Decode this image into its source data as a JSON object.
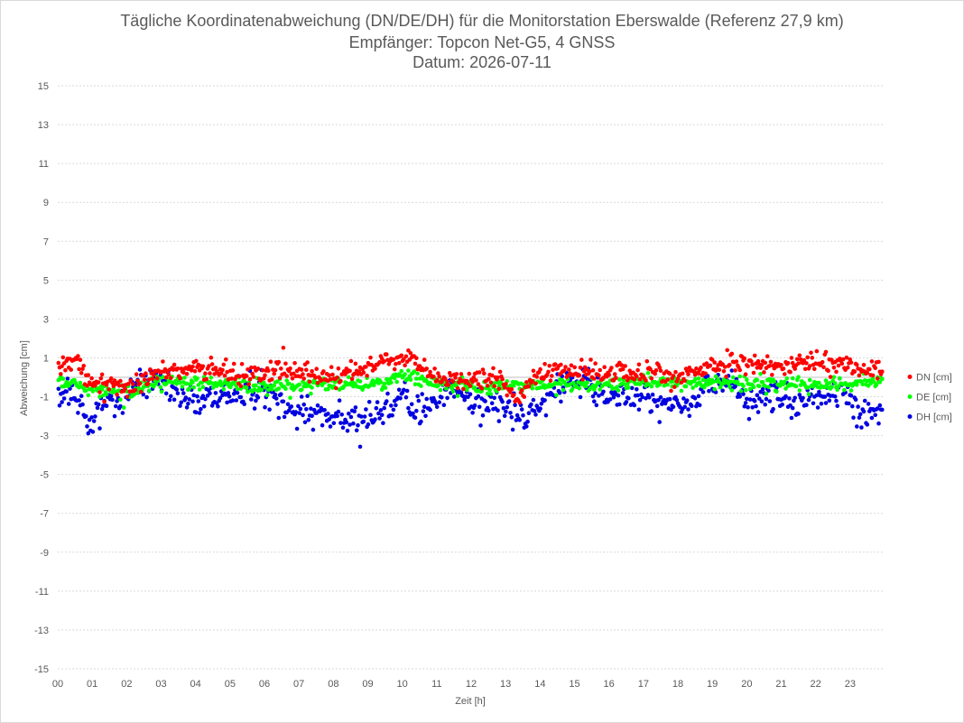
{
  "chart_data": {
    "type": "scatter",
    "title": [
      "Tägliche Koordinatenabweichung (DN/DE/DH) für die Monitorstation Eberswalde (Referenz 27,9 km)",
      "Empfänger: Topcon Net-G5, 4 GNSS",
      "Datum: 2026-07-11"
    ],
    "xlabel": "Zeit [h]",
    "ylabel": "Abweichung [cm]",
    "xlim": [
      0,
      24
    ],
    "ylim": [
      -15,
      15
    ],
    "x_ticks": [
      "00",
      "01",
      "02",
      "03",
      "04",
      "05",
      "06",
      "07",
      "08",
      "09",
      "10",
      "11",
      "12",
      "13",
      "14",
      "15",
      "16",
      "17",
      "18",
      "19",
      "20",
      "21",
      "22",
      "23"
    ],
    "y_ticks": [
      "15",
      "13",
      "11",
      "9",
      "7",
      "5",
      "3",
      "1",
      "-1",
      "-3",
      "-5",
      "-7",
      "-9",
      "-11",
      "-13",
      "-15"
    ],
    "grid": true,
    "legend": "right",
    "sample_interval_h": 0.0333,
    "series": [
      {
        "name": "DN [cm]",
        "color": "#ff0000",
        "profile": [
          [
            0.0,
            0.4
          ],
          [
            0.5,
            1.1
          ],
          [
            0.8,
            0.0
          ],
          [
            1.2,
            -0.2
          ],
          [
            1.5,
            -0.5
          ],
          [
            2.0,
            -0.6
          ],
          [
            2.5,
            -0.1
          ],
          [
            3.0,
            0.3
          ],
          [
            4.0,
            0.4
          ],
          [
            5.0,
            0.3
          ],
          [
            6.0,
            0.0
          ],
          [
            6.5,
            0.6
          ],
          [
            7.0,
            0.2
          ],
          [
            8.0,
            0.0
          ],
          [
            9.0,
            0.4
          ],
          [
            9.5,
            1.0
          ],
          [
            10.0,
            0.9
          ],
          [
            10.5,
            0.5
          ],
          [
            11.0,
            0.0
          ],
          [
            12.0,
            -0.2
          ],
          [
            12.5,
            0.0
          ],
          [
            13.0,
            -0.4
          ],
          [
            13.4,
            -1.3
          ],
          [
            13.8,
            0.1
          ],
          [
            14.5,
            0.3
          ],
          [
            15.0,
            0.4
          ],
          [
            16.0,
            0.3
          ],
          [
            17.0,
            0.2
          ],
          [
            18.0,
            0.0
          ],
          [
            19.0,
            0.6
          ],
          [
            20.0,
            0.8
          ],
          [
            21.0,
            0.5
          ],
          [
            22.0,
            0.8
          ],
          [
            23.0,
            0.6
          ],
          [
            23.9,
            0.2
          ]
        ],
        "spread": 0.35
      },
      {
        "name": "DE [cm]",
        "color": "#00ff00",
        "profile": [
          [
            0.0,
            -0.2
          ],
          [
            1.0,
            -0.6
          ],
          [
            2.0,
            -0.7
          ],
          [
            3.0,
            -0.2
          ],
          [
            4.0,
            -0.4
          ],
          [
            5.0,
            -0.3
          ],
          [
            6.0,
            -0.5
          ],
          [
            7.0,
            -0.4
          ],
          [
            8.0,
            -0.4
          ],
          [
            9.0,
            -0.4
          ],
          [
            10.0,
            0.0
          ],
          [
            11.0,
            -0.3
          ],
          [
            12.0,
            -0.5
          ],
          [
            13.0,
            -0.4
          ],
          [
            14.0,
            -0.4
          ],
          [
            15.0,
            -0.4
          ],
          [
            16.0,
            -0.4
          ],
          [
            17.0,
            -0.2
          ],
          [
            18.0,
            -0.3
          ],
          [
            19.0,
            -0.2
          ],
          [
            20.0,
            -0.3
          ],
          [
            21.0,
            -0.3
          ],
          [
            22.0,
            -0.4
          ],
          [
            23.0,
            -0.3
          ],
          [
            23.9,
            -0.2
          ]
        ],
        "spread": 0.25
      },
      {
        "name": "DH [cm]",
        "color": "#0000e0",
        "profile": [
          [
            0.0,
            -1.2
          ],
          [
            0.4,
            -0.6
          ],
          [
            0.9,
            -2.3
          ],
          [
            1.5,
            -1.2
          ],
          [
            2.0,
            -0.8
          ],
          [
            2.5,
            -0.3
          ],
          [
            3.0,
            0.0
          ],
          [
            3.5,
            -0.8
          ],
          [
            4.0,
            -1.3
          ],
          [
            5.0,
            -0.9
          ],
          [
            6.0,
            -0.6
          ],
          [
            6.5,
            -1.6
          ],
          [
            7.0,
            -1.8
          ],
          [
            8.0,
            -2.0
          ],
          [
            8.5,
            -2.3
          ],
          [
            9.0,
            -2.0
          ],
          [
            9.5,
            -1.8
          ],
          [
            10.0,
            -1.0
          ],
          [
            10.5,
            -1.8
          ],
          [
            11.0,
            -1.3
          ],
          [
            11.5,
            -0.6
          ],
          [
            12.0,
            -1.3
          ],
          [
            12.5,
            -1.4
          ],
          [
            13.0,
            -1.6
          ],
          [
            13.5,
            -2.2
          ],
          [
            14.0,
            -1.4
          ],
          [
            14.5,
            -0.5
          ],
          [
            15.0,
            -0.2
          ],
          [
            16.0,
            -0.9
          ],
          [
            17.0,
            -1.0
          ],
          [
            17.5,
            -1.5
          ],
          [
            18.0,
            -1.3
          ],
          [
            18.5,
            -1.2
          ],
          [
            19.0,
            -0.4
          ],
          [
            19.5,
            -0.2
          ],
          [
            20.0,
            -1.3
          ],
          [
            20.5,
            -1.0
          ],
          [
            21.0,
            -1.2
          ],
          [
            21.5,
            -1.3
          ],
          [
            22.0,
            -0.8
          ],
          [
            22.5,
            -0.7
          ],
          [
            23.0,
            -1.2
          ],
          [
            23.5,
            -2.0
          ],
          [
            23.9,
            -1.8
          ]
        ],
        "spread": 0.55
      }
    ]
  }
}
